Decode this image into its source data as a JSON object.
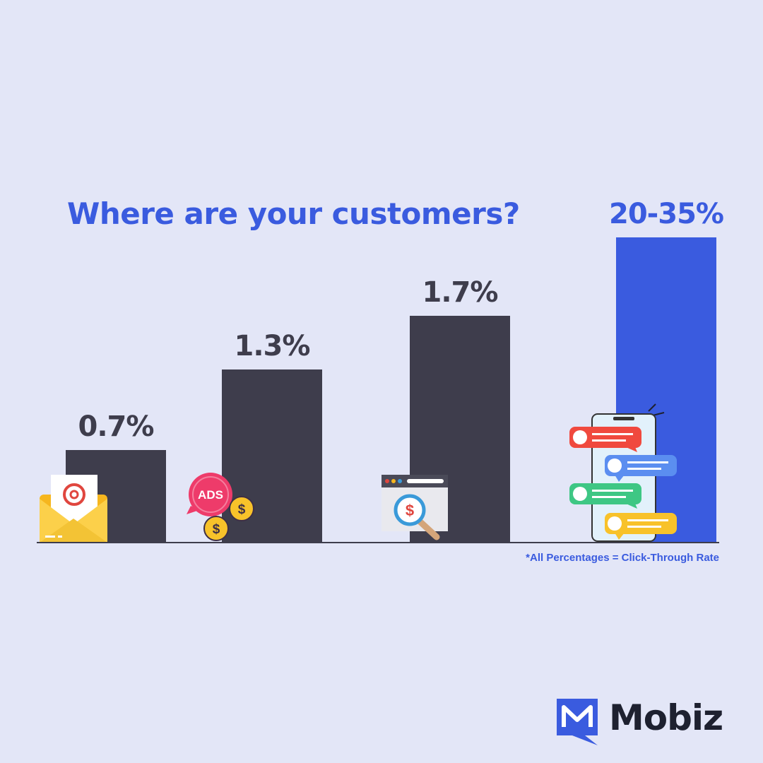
{
  "title": "Where are your customers?",
  "footnote": "*All Percentages = Click-Through Rate",
  "brand": {
    "name": "Mobiz",
    "color": "#3a5bdf",
    "text_color": "#1e2130"
  },
  "colors": {
    "background": "#e3e6f7",
    "bar_dark": "#3e3d4c",
    "bar_highlight": "#3a5bdf",
    "label_dark": "#3e3d4c",
    "axis": "#3e3d4c"
  },
  "chart_data": {
    "type": "bar",
    "title": "Where are your customers?",
    "categories": [
      "email-icon",
      "ads-icon",
      "search-icon",
      "sms-chat-icon"
    ],
    "values": [
      0.7,
      1.3,
      1.7,
      27.5
    ],
    "value_labels": [
      "0.7%",
      "1.3%",
      "1.7%",
      "20-35%"
    ],
    "value_ranges": [
      [
        0.7,
        0.7
      ],
      [
        1.3,
        1.3
      ],
      [
        1.7,
        1.7
      ],
      [
        20,
        35
      ]
    ],
    "highlight_index": 3,
    "xlabel": "",
    "ylabel": "",
    "grid": false,
    "note": "*All Percentages = Click-Through Rate"
  }
}
